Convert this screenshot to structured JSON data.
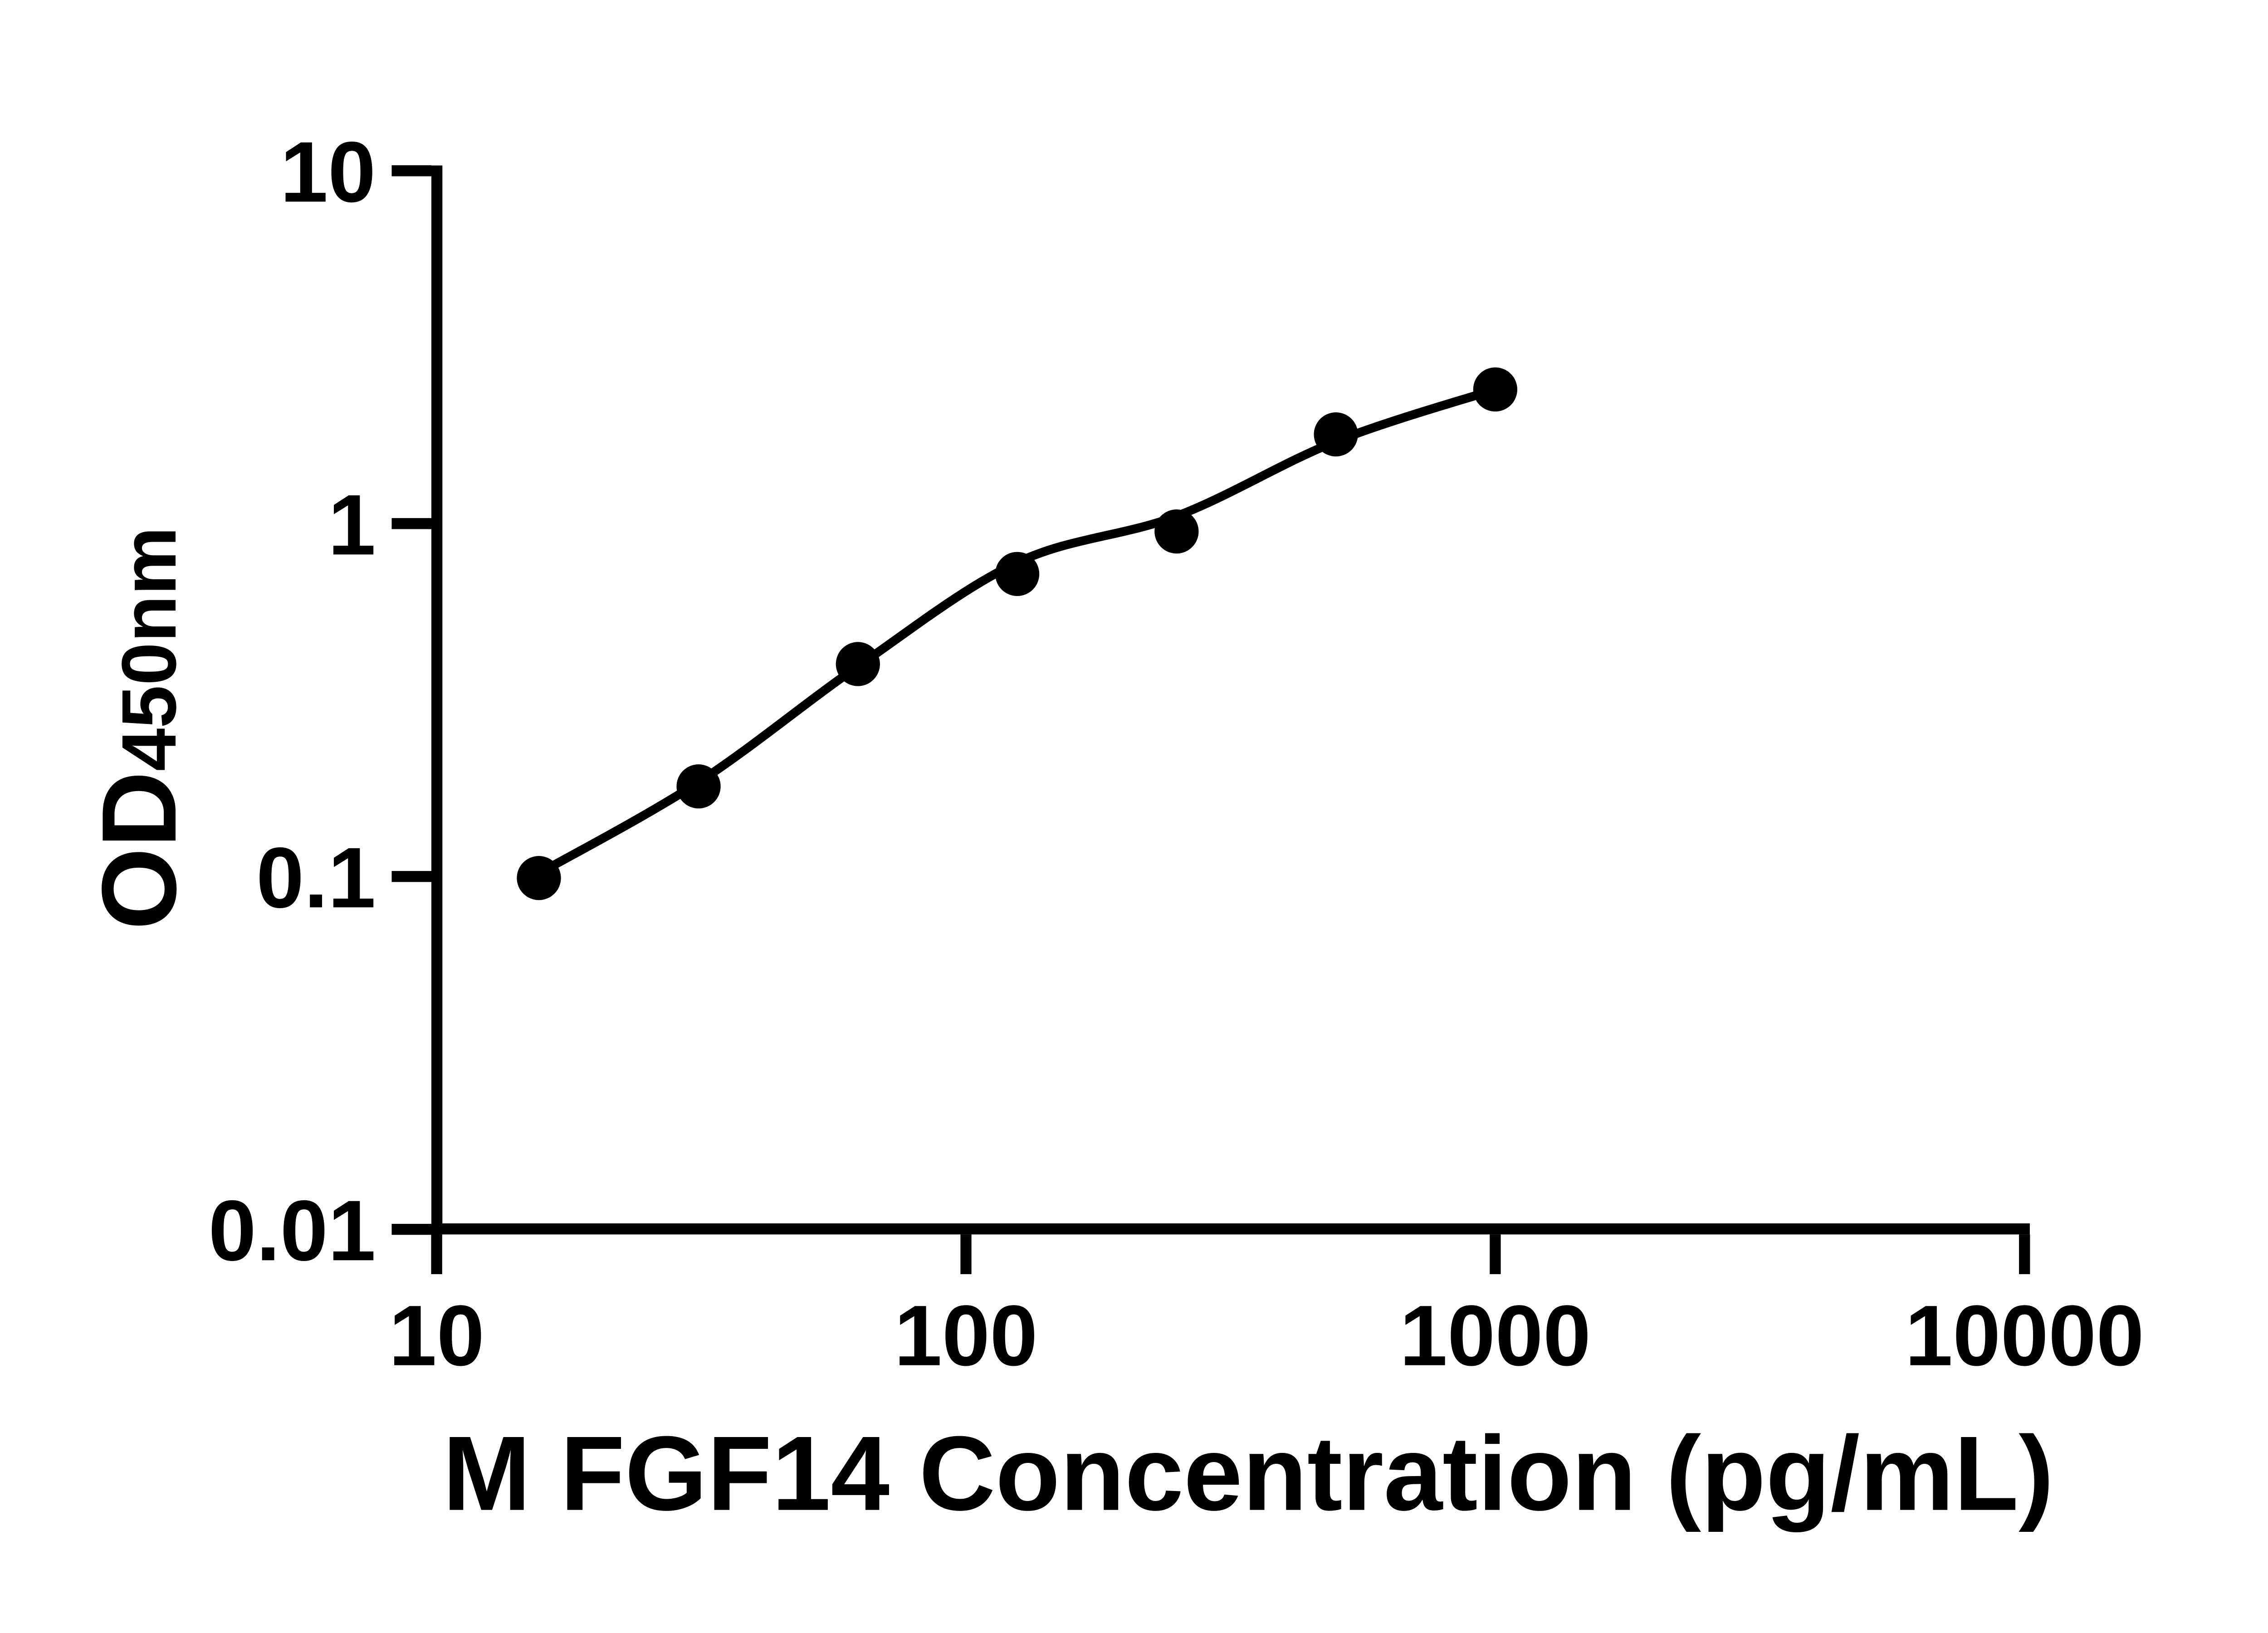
{
  "figure": {
    "background_color": "#ffffff",
    "ink_color": "#000000"
  },
  "chart_data": {
    "type": "scatter",
    "title": "",
    "xlabel": "M FGF14 Concentration (pg/mL)",
    "ylabel_base": "OD",
    "ylabel_sub": "450nm",
    "x_scale": "log10",
    "y_scale": "log10",
    "xlim": [
      10,
      10000
    ],
    "ylim": [
      0.01,
      10
    ],
    "x_ticks": [
      "10",
      "100",
      "1000",
      "10000"
    ],
    "y_ticks": [
      "10",
      "1",
      "0.1",
      "0.01"
    ],
    "grid": false,
    "legend": null,
    "series": [
      {
        "name": "M FGF14 standard",
        "marker": "circle",
        "marker_color": "#000000",
        "x": [
          15.6,
          31.25,
          62.5,
          125,
          250,
          500,
          1000
        ],
        "y": [
          0.099,
          0.18,
          0.4,
          0.72,
          0.95,
          1.79,
          2.4
        ]
      }
    ],
    "fit_line": {
      "name": "fitted standard curve",
      "style": "solid",
      "color": "#000000",
      "x": [
        15.6,
        31.25,
        62.5,
        125,
        250,
        500,
        1000
      ],
      "y": [
        0.102,
        0.185,
        0.394,
        0.776,
        1.05,
        1.71,
        2.4
      ]
    }
  }
}
